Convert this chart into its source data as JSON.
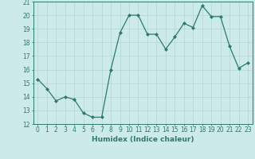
{
  "x": [
    0,
    1,
    2,
    3,
    4,
    5,
    6,
    7,
    8,
    9,
    10,
    11,
    12,
    13,
    14,
    15,
    16,
    17,
    18,
    19,
    20,
    21,
    22,
    23
  ],
  "y": [
    15.3,
    14.6,
    13.7,
    14.0,
    13.8,
    12.8,
    12.5,
    12.5,
    16.0,
    18.7,
    20.0,
    20.0,
    18.6,
    18.6,
    17.5,
    18.4,
    19.4,
    19.1,
    20.7,
    19.9,
    19.9,
    17.7,
    16.1,
    16.5
  ],
  "line_color": "#2d7a6e",
  "marker": "D",
  "marker_size": 2.0,
  "bg_color": "#cceae8",
  "grid_color": "#b8d8d6",
  "text_color": "#2d7a6e",
  "xlabel": "Humidex (Indice chaleur)",
  "ylim": [
    12,
    21
  ],
  "xlim": [
    -0.5,
    23.5
  ],
  "yticks": [
    12,
    13,
    14,
    15,
    16,
    17,
    18,
    19,
    20,
    21
  ],
  "xticks": [
    0,
    1,
    2,
    3,
    4,
    5,
    6,
    7,
    8,
    9,
    10,
    11,
    12,
    13,
    14,
    15,
    16,
    17,
    18,
    19,
    20,
    21,
    22,
    23
  ],
  "xlabel_fontsize": 6.5,
  "tick_fontsize": 5.5
}
